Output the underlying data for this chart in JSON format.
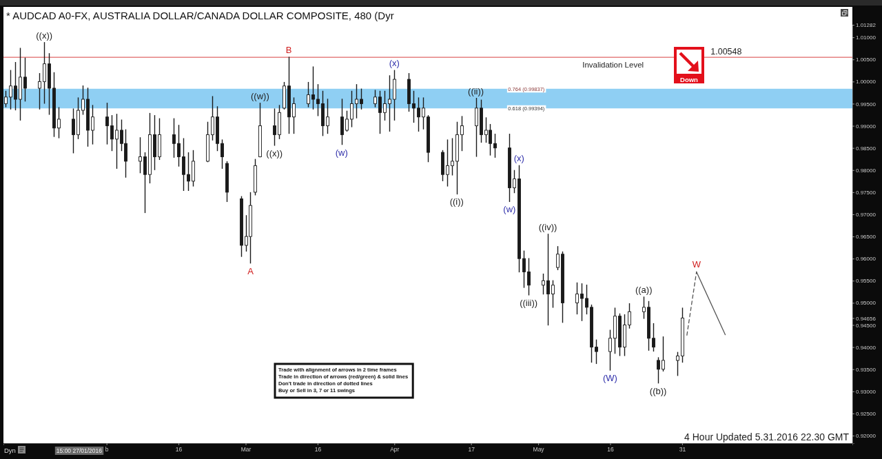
{
  "chart_data": {
    "type": "candlestick",
    "title": "* AUDCAD A0-FX, AUSTRALIA DOLLAR/CANADA DOLLAR COMPOSITE, 480 (Dyr",
    "color": "#1a1a1a",
    "x": [
      "2016-01-11",
      "2016-01-12",
      "2016-01-13",
      "2016-01-14",
      "2016-01-15",
      "2016-01-18",
      "2016-01-19",
      "2016-01-20",
      "2016-01-21",
      "2016-01-22",
      "2016-01-25",
      "2016-01-26",
      "2016-01-27",
      "2016-01-28",
      "2016-01-29",
      "2016-02-01",
      "2016-02-02",
      "2016-02-03",
      "2016-02-04",
      "2016-02-05",
      "2016-02-08",
      "2016-02-09",
      "2016-02-10",
      "2016-02-11",
      "2016-02-12",
      "2016-02-15",
      "2016-02-16",
      "2016-02-17",
      "2016-02-18",
      "2016-02-19",
      "2016-02-22",
      "2016-02-23",
      "2016-02-24",
      "2016-02-25",
      "2016-02-26",
      "2016-02-29",
      "2016-03-01",
      "2016-03-02",
      "2016-03-03",
      "2016-03-04",
      "2016-03-07",
      "2016-03-08",
      "2016-03-09",
      "2016-03-10",
      "2016-03-11",
      "2016-03-14",
      "2016-03-15",
      "2016-03-16",
      "2016-03-17",
      "2016-03-18",
      "2016-03-21",
      "2016-03-22",
      "2016-03-23",
      "2016-03-24",
      "2016-03-25",
      "2016-03-28",
      "2016-03-29",
      "2016-03-30",
      "2016-03-31",
      "2016-04-01",
      "2016-04-04",
      "2016-04-05",
      "2016-04-06",
      "2016-04-07",
      "2016-04-08",
      "2016-04-11",
      "2016-04-12",
      "2016-04-13",
      "2016-04-14",
      "2016-04-15",
      "2016-04-18",
      "2016-04-19",
      "2016-04-20",
      "2016-04-21",
      "2016-04-22",
      "2016-04-25",
      "2016-04-26",
      "2016-04-27",
      "2016-04-28",
      "2016-04-29",
      "2016-05-02",
      "2016-05-03",
      "2016-05-04",
      "2016-05-05",
      "2016-05-06",
      "2016-05-09",
      "2016-05-10",
      "2016-05-11",
      "2016-05-12",
      "2016-05-13",
      "2016-05-16",
      "2016-05-17",
      "2016-05-18",
      "2016-05-19",
      "2016-05-20",
      "2016-05-23",
      "2016-05-24",
      "2016-05-25",
      "2016-05-26",
      "2016-05-27",
      "2016-05-30",
      "2016-05-31"
    ],
    "ohlc": [
      [
        0.995,
        0.9978,
        0.9943,
        0.9965
      ],
      [
        0.9965,
        1.0025,
        0.9938,
        0.999
      ],
      [
        0.999,
        1.0043,
        0.9936,
        0.996
      ],
      [
        0.996,
        1.0075,
        0.9913,
        1.001
      ],
      [
        1.001,
        1.0053,
        0.9956,
        0.9985
      ],
      [
        0.9985,
        1.0018,
        0.9938,
        1.0
      ],
      [
        1.0,
        1.0088,
        0.9951,
        1.004
      ],
      [
        1.004,
        1.0063,
        0.9926,
        0.9985
      ],
      [
        0.9985,
        1.002,
        0.9876,
        0.9895
      ],
      [
        0.9895,
        0.9941,
        0.9873,
        0.9915
      ],
      [
        0.9915,
        0.9938,
        0.9839,
        0.988
      ],
      [
        0.988,
        0.9963,
        0.9871,
        0.9935
      ],
      [
        0.9935,
        0.999,
        0.9926,
        0.996
      ],
      [
        0.996,
        0.9985,
        0.9854,
        0.989
      ],
      [
        0.989,
        0.9946,
        0.9859,
        0.992
      ],
      [
        0.992,
        0.9951,
        0.9859,
        0.99
      ],
      [
        0.99,
        0.9923,
        0.9844,
        0.987
      ],
      [
        0.987,
        0.9926,
        0.9804,
        0.989
      ],
      [
        0.989,
        0.9913,
        0.9844,
        0.986
      ],
      [
        0.986,
        0.9891,
        0.9784,
        0.982
      ],
      [
        0.982,
        0.9873,
        0.9794,
        0.983
      ],
      [
        0.983,
        0.9839,
        0.9704,
        0.979
      ],
      [
        0.979,
        0.9928,
        0.9771,
        0.988
      ],
      [
        0.988,
        0.9923,
        0.9801,
        0.983
      ],
      [
        0.983,
        0.9916,
        0.9824,
        0.988
      ],
      [
        0.988,
        0.9916,
        0.9829,
        0.986
      ],
      [
        0.986,
        0.9901,
        0.9809,
        0.983
      ],
      [
        0.983,
        0.9871,
        0.9754,
        0.979
      ],
      [
        0.979,
        0.9839,
        0.9754,
        0.9775
      ],
      [
        0.9775,
        0.9844,
        0.9764,
        0.982
      ],
      [
        0.982,
        0.9908,
        0.9819,
        0.988
      ],
      [
        0.988,
        0.9966,
        0.9868,
        0.992
      ],
      [
        0.992,
        0.9943,
        0.9844,
        0.986
      ],
      [
        0.986,
        0.9868,
        0.9804,
        0.983
      ],
      [
        0.9815,
        0.9819,
        0.9729,
        0.975
      ],
      [
        0.9735,
        0.974,
        0.9605,
        0.963
      ],
      [
        0.963,
        0.9697,
        0.9617,
        0.965
      ],
      [
        0.965,
        0.9749,
        0.959,
        0.972
      ],
      [
        0.975,
        0.9824,
        0.9744,
        0.981
      ],
      [
        0.983,
        0.9951,
        0.983,
        0.99
      ],
      [
        0.99,
        0.9938,
        0.9856,
        0.988
      ],
      [
        0.988,
        0.9946,
        0.9871,
        0.993
      ],
      [
        0.994,
        0.9998,
        0.9938,
        0.999
      ],
      [
        0.999,
        1.00548,
        0.9883,
        0.992
      ],
      [
        0.992,
        0.9963,
        0.9883,
        0.995
      ],
      [
        0.995,
        0.9998,
        0.9943,
        0.997
      ],
      [
        0.997,
        1.0033,
        0.9938,
        0.996
      ],
      [
        0.996,
        0.9993,
        0.9923,
        0.995
      ],
      [
        0.995,
        0.9978,
        0.9878,
        0.99
      ],
      [
        0.99,
        0.996,
        0.9883,
        0.992
      ],
      [
        0.992,
        0.996,
        0.9858,
        0.988
      ],
      [
        0.989,
        0.9933,
        0.9888,
        0.9915
      ],
      [
        0.9915,
        0.9978,
        0.9898,
        0.995
      ],
      [
        0.995,
        0.9993,
        0.9918,
        0.996
      ],
      [
        0.996,
        0.9983,
        0.9938,
        0.995
      ],
      [
        0.995,
        0.998,
        0.9943,
        0.9965
      ],
      [
        0.9965,
        0.9978,
        0.9883,
        0.993
      ],
      [
        0.993,
        0.9978,
        0.9913,
        0.995
      ],
      [
        0.995,
        1.0013,
        0.9888,
        0.996
      ],
      [
        0.996,
        1.0025,
        0.9913,
        1.0005
      ],
      [
        1.0005,
        1.0018,
        0.9933,
        0.995
      ],
      [
        0.995,
        0.9978,
        0.9908,
        0.994
      ],
      [
        0.994,
        0.9963,
        0.9888,
        0.992
      ],
      [
        0.992,
        0.9963,
        0.9893,
        0.994
      ],
      [
        0.992,
        0.9923,
        0.9819,
        0.984
      ],
      [
        0.984,
        0.9844,
        0.9776,
        0.979
      ],
      [
        0.979,
        0.9868,
        0.9764,
        0.981
      ],
      [
        0.981,
        0.9871,
        0.9789,
        0.982
      ],
      [
        0.982,
        0.9908,
        0.9746,
        0.988
      ],
      [
        0.988,
        0.9921,
        0.9844,
        0.99
      ],
      [
        0.99,
        0.9962,
        0.9831,
        0.994
      ],
      [
        0.994,
        0.9958,
        0.9863,
        0.988
      ],
      [
        0.988,
        0.9918,
        0.9863,
        0.989
      ],
      [
        0.989,
        0.9903,
        0.9834,
        0.986
      ],
      [
        0.986,
        0.9881,
        0.9829,
        0.985
      ],
      [
        0.985,
        0.9881,
        0.9729,
        0.976
      ],
      [
        0.976,
        0.9799,
        0.9749,
        0.978
      ],
      [
        0.978,
        0.981,
        0.957,
        0.96
      ],
      [
        0.96,
        0.9617,
        0.9535,
        0.957
      ],
      [
        0.957,
        0.96,
        0.9518,
        0.954
      ],
      [
        0.954,
        0.9565,
        0.952,
        0.955
      ],
      [
        0.955,
        0.9655,
        0.945,
        0.952
      ],
      [
        0.952,
        0.955,
        0.949,
        0.954
      ],
      [
        0.958,
        0.9627,
        0.9575,
        0.961
      ],
      [
        0.961,
        0.9615,
        0.9456,
        0.95
      ],
      [
        0.95,
        0.9545,
        0.9475,
        0.952
      ],
      [
        0.952,
        0.9543,
        0.946,
        0.951
      ],
      [
        0.951,
        0.954,
        0.9475,
        0.949
      ],
      [
        0.949,
        0.9495,
        0.9366,
        0.94
      ],
      [
        0.94,
        0.9416,
        0.9363,
        0.939
      ],
      [
        0.939,
        0.9438,
        0.9348,
        0.942
      ],
      [
        0.942,
        0.9488,
        0.9386,
        0.947
      ],
      [
        0.947,
        0.9475,
        0.9381,
        0.94
      ],
      [
        0.94,
        0.9473,
        0.9381,
        0.945
      ],
      [
        0.945,
        0.9498,
        0.9443,
        0.948
      ],
      [
        0.948,
        0.9513,
        0.9465,
        0.949
      ],
      [
        0.949,
        0.9503,
        0.9393,
        0.942
      ],
      [
        0.942,
        0.9453,
        0.9391,
        0.94
      ],
      [
        0.937,
        0.9376,
        0.9319,
        0.935
      ],
      [
        0.935,
        0.9423,
        0.9346,
        0.937
      ],
      [
        0.937,
        0.9388,
        0.9336,
        0.938
      ],
      [
        0.938,
        0.9488,
        0.9366,
        0.94656
      ]
    ],
    "series": [
      {
        "type": "line",
        "x": [
          "2016-06-01",
          "2016-06-03"
        ],
        "values": [
          0.9427,
          0.957
        ],
        "color": "#555555",
        "line_style": "dashed"
      },
      {
        "type": "line",
        "x": [
          "2016-06-03",
          "2016-06-09"
        ],
        "values": [
          0.957,
          0.9428
        ],
        "color": "#555555",
        "line_style": "solid"
      }
    ],
    "xlim": [
      "2016-01-10T12:00",
      "2016-07-05T12:00"
    ],
    "xticks": [
      {
        "value": "2016-02-01",
        "label": "b"
      },
      {
        "value": "2016-02-16",
        "label": "16"
      },
      {
        "value": "2016-03-01",
        "label": "Mar"
      },
      {
        "value": "2016-03-16",
        "label": "16"
      },
      {
        "value": "2016-04-01",
        "label": "Apr"
      },
      {
        "value": "2016-04-17",
        "label": "17"
      },
      {
        "value": "2016-05-01",
        "label": "May"
      },
      {
        "value": "2016-05-16",
        "label": "16"
      },
      {
        "value": "2016-05-31",
        "label": "31"
      }
    ],
    "ylim": [
      0.9183,
      1.01282
    ],
    "yticks": [
      {
        "value": 0.92,
        "label": "0.92000"
      },
      {
        "value": 0.925,
        "label": "0.92500"
      },
      {
        "value": 0.93,
        "label": "0.93000"
      },
      {
        "value": 0.935,
        "label": "0.93500"
      },
      {
        "value": 0.94,
        "label": "0.94000"
      },
      {
        "value": 0.945,
        "label": "0.94500"
      },
      0.94656,
      {
        "value": 0.95,
        "label": "0.95000"
      },
      {
        "value": 0.955,
        "label": "0.95500"
      },
      {
        "value": 0.96,
        "label": "0.96000"
      },
      {
        "value": 0.965,
        "label": "0.96500"
      },
      {
        "value": 0.97,
        "label": "0.97000"
      },
      {
        "value": 0.975,
        "label": "0.97500"
      },
      {
        "value": 0.98,
        "label": "0.98000"
      },
      {
        "value": 0.985,
        "label": "0.98500"
      },
      {
        "value": 0.99,
        "label": "0.99000"
      },
      {
        "value": 0.995,
        "label": "0.99500"
      },
      {
        "value": 1.0,
        "label": "1.00000"
      },
      {
        "value": 1.005,
        "label": "1.00500"
      },
      {
        "value": 1.01,
        "label": "1.01000"
      },
      1.01282
    ],
    "ref_lines": [
      {
        "axis": "y",
        "value": 1.00548,
        "label": "Invalidation Level",
        "color": "#e06666"
      }
    ],
    "bands": [
      {
        "axis": "y",
        "from": 0.99394,
        "to": 0.99837,
        "color": "#8fcff3"
      }
    ],
    "annotations": [
      {
        "text": "((x))",
        "x": "2016-01-19",
        "y": 1.0088
      },
      {
        "text": "B",
        "x": "2016-03-10",
        "y": 1.00548
      },
      {
        "text": "((w))",
        "x": "2016-03-04",
        "y": 0.9951
      },
      {
        "text": "((x))",
        "x": "2016-03-07",
        "y": 0.9856
      },
      {
        "text": "A",
        "x": "2016-03-02",
        "y": 0.959
      },
      {
        "text": "(w)",
        "x": "2016-03-21",
        "y": 0.9858
      },
      {
        "text": "(x)",
        "x": "2016-04-01",
        "y": 1.0025
      },
      {
        "text": "((i))",
        "x": "2016-04-14",
        "y": 0.9746
      },
      {
        "text": "((ii))",
        "x": "2016-04-18",
        "y": 0.9962
      },
      {
        "text": "0.764 (0.99837)",
        "x": "2016-04-24",
        "y": 0.99837
      },
      {
        "text": "0.618 (0.99394)",
        "x": "2016-04-24",
        "y": 0.99394
      },
      {
        "text": "(w)",
        "x": "2016-04-25",
        "y": 0.9729
      },
      {
        "text": "(x)",
        "x": "2016-04-27",
        "y": 0.981
      },
      {
        "text": "((iii))",
        "x": "2016-04-29",
        "y": 0.9518
      },
      {
        "text": "((iv))",
        "x": "2016-05-03",
        "y": 0.9655
      },
      {
        "text": "(W)",
        "x": "2016-05-16",
        "y": 0.9348
      },
      {
        "text": "((a))",
        "x": "2016-05-23",
        "y": 0.9513
      },
      {
        "text": "((b))",
        "x": "2016-05-26",
        "y": 0.9319
      },
      {
        "text": "W",
        "x": "2016-06-03",
        "y": 0.957
      },
      "Trade with alignment of arrows in 2 time frames",
      "Trade in direction of arrows (red/green) & solid lines",
      "Don't trade in direction of dotted lines",
      "Buy or Sell in 3, 7 or 11 swings",
      "4 Hour Updated 5.31.2016 22.30 GMT",
      "15:00 27/01/2016",
      "Dyn",
      "Down",
      "1.00548"
    ]
  }
}
